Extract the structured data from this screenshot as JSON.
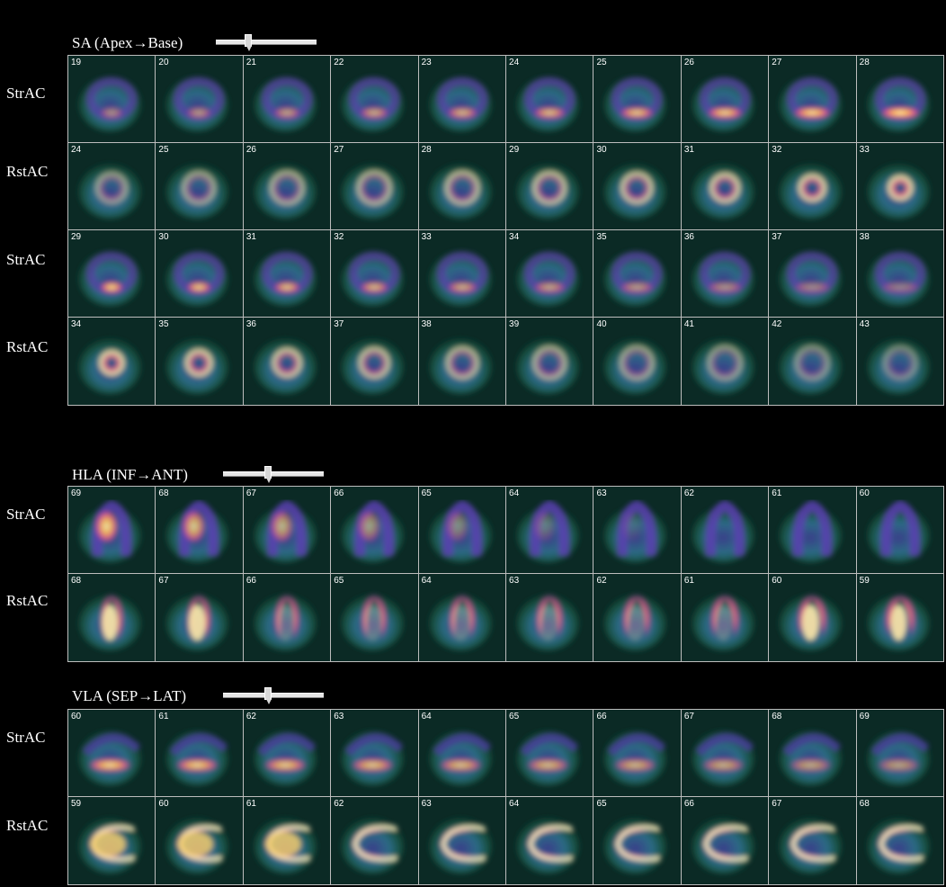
{
  "sections": [
    {
      "id": "sa",
      "title": "SA (Apex→Base)",
      "rows": [
        {
          "label": "StrAC",
          "frames": [
            "19",
            "20",
            "21",
            "22",
            "23",
            "24",
            "25",
            "26",
            "27",
            "28"
          ]
        },
        {
          "label": "RstAC",
          "frames": [
            "24",
            "25",
            "26",
            "27",
            "28",
            "29",
            "30",
            "31",
            "32",
            "33"
          ]
        },
        {
          "label": "StrAC",
          "frames": [
            "29",
            "30",
            "31",
            "32",
            "33",
            "34",
            "35",
            "36",
            "37",
            "38"
          ]
        },
        {
          "label": "RstAC",
          "frames": [
            "34",
            "35",
            "36",
            "37",
            "38",
            "39",
            "40",
            "41",
            "42",
            "43"
          ]
        }
      ]
    },
    {
      "id": "hla",
      "title": "HLA (INF→ANT)",
      "rows": [
        {
          "label": "StrAC",
          "frames": [
            "69",
            "68",
            "67",
            "66",
            "65",
            "64",
            "63",
            "62",
            "61",
            "60"
          ]
        },
        {
          "label": "RstAC",
          "frames": [
            "68",
            "67",
            "66",
            "65",
            "64",
            "63",
            "62",
            "61",
            "60",
            "59"
          ]
        }
      ]
    },
    {
      "id": "vla",
      "title": "VLA (SEP→LAT)",
      "rows": [
        {
          "label": "StrAC",
          "frames": [
            "60",
            "61",
            "62",
            "63",
            "64",
            "65",
            "66",
            "67",
            "68",
            "69"
          ]
        },
        {
          "label": "RstAC",
          "frames": [
            "59",
            "60",
            "61",
            "62",
            "63",
            "64",
            "65",
            "66",
            "67",
            "68"
          ]
        }
      ]
    }
  ],
  "colors": {
    "background": "#000000",
    "grid_border": "#bdbdbd",
    "text": "#ffffff"
  }
}
